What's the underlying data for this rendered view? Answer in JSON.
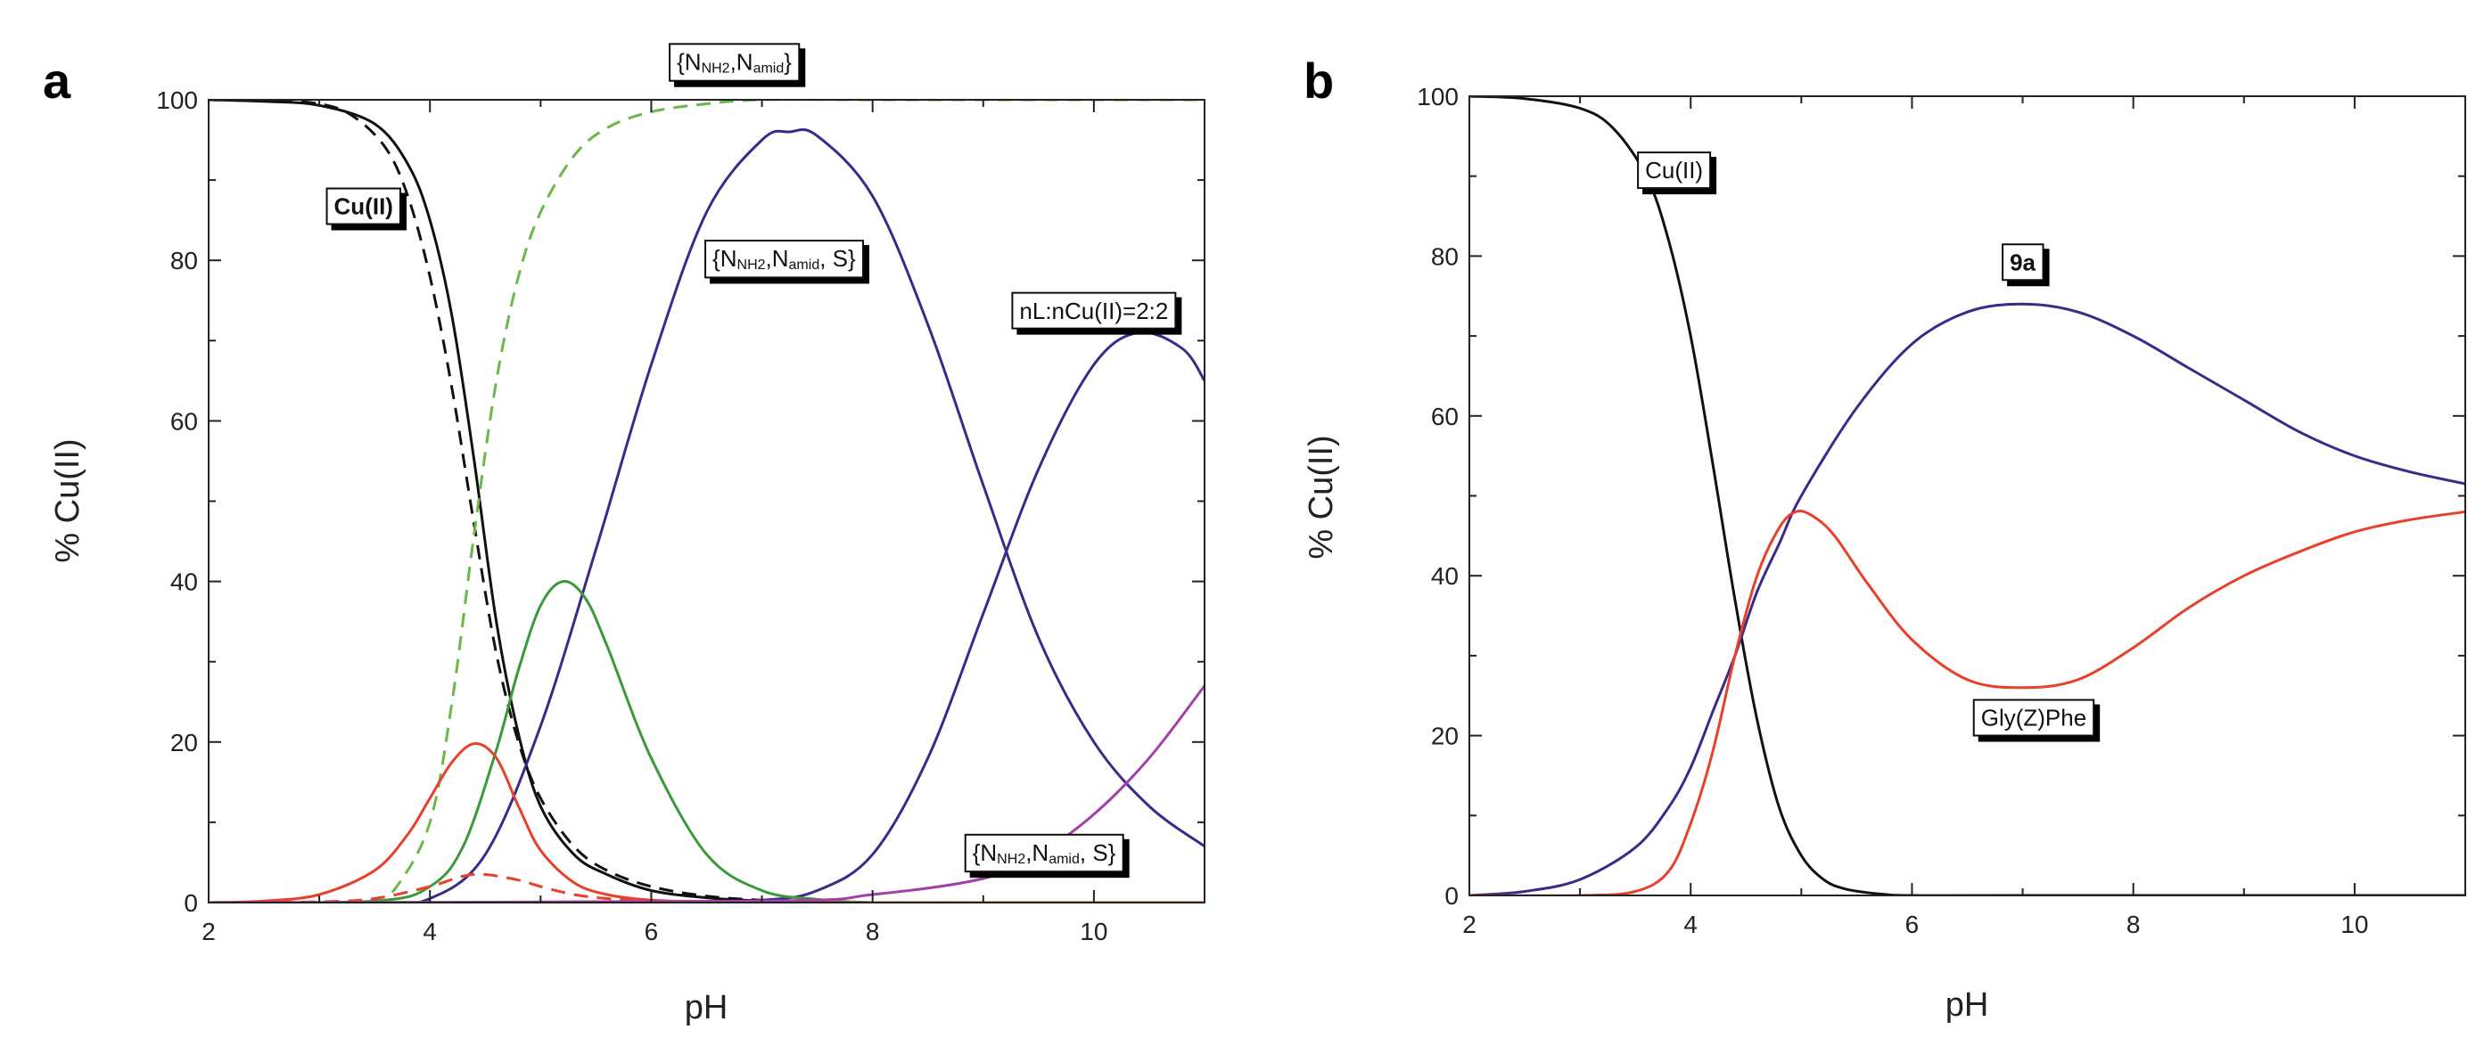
{
  "colors": {
    "black": "#111111",
    "green": "#3a9a3a",
    "green_dashed": "#6ab84a",
    "purple": "#3b2a8a",
    "red": "#e8402a",
    "magenta": "#a040a8"
  },
  "chart_data": [
    {
      "type": "line",
      "panel": "a",
      "xlabel": "pH",
      "ylabel": "% Cu(II)",
      "xlim": [
        2,
        11
      ],
      "ylim": [
        0,
        100
      ],
      "xticks": [
        2,
        4,
        6,
        8,
        10
      ],
      "yticks": [
        0,
        20,
        40,
        60,
        80,
        100
      ],
      "series": [
        {
          "name": "Cu(II)",
          "style": "solid",
          "color": "black",
          "x": [
            2,
            2.5,
            3,
            3.5,
            3.8,
            4,
            4.2,
            4.4,
            4.6,
            4.8,
            5,
            5.3,
            5.6,
            6,
            6.5,
            7,
            7.5,
            8,
            9,
            10,
            11
          ],
          "y": [
            100,
            99.8,
            99.3,
            97,
            92,
            85,
            73,
            55,
            35,
            21,
            12,
            6,
            3.5,
            1.5,
            0.6,
            0.2,
            0.1,
            0,
            0,
            0,
            0
          ]
        },
        {
          "name": "Cu(II) (dashed)",
          "style": "dashed",
          "color": "black",
          "x": [
            2,
            2.5,
            3,
            3.3,
            3.6,
            3.8,
            4,
            4.2,
            4.4,
            4.6,
            4.8,
            5,
            5.3,
            5.6,
            6,
            6.5,
            7,
            7.5,
            8,
            9,
            10,
            11
          ],
          "y": [
            100,
            100,
            99.5,
            98,
            94,
            88,
            78,
            64,
            47,
            31,
            20,
            13,
            7,
            4,
            2,
            0.8,
            0.3,
            0.1,
            0,
            0,
            0,
            0
          ]
        },
        {
          "name": "{NNH2,Namid}",
          "style": "dashed",
          "color": "green_dashed",
          "x": [
            2,
            3,
            3.5,
            3.7,
            4,
            4.2,
            4.4,
            4.6,
            4.8,
            5,
            5.3,
            5.6,
            6,
            6.5,
            7,
            8,
            9,
            10,
            11
          ],
          "y": [
            0,
            0,
            0.5,
            2,
            10,
            25,
            46,
            65,
            78,
            86,
            93,
            96.5,
            98.5,
            99.5,
            100,
            100,
            100,
            100,
            100
          ]
        },
        {
          "name": "{NNH2,Namid, S}",
          "style": "solid",
          "color": "purple",
          "x": [
            2,
            3.5,
            4,
            4.5,
            5,
            5.5,
            6,
            6.5,
            7,
            7.25,
            7.5,
            8,
            8.5,
            9,
            9.5,
            10,
            10.5,
            11
          ],
          "y": [
            0,
            0,
            0.5,
            6,
            22,
            44,
            67,
            86,
            95,
            96,
            95.5,
            88,
            72,
            52,
            33,
            20,
            12,
            7
          ]
        },
        {
          "name": "nL:nCu(II)=2:2",
          "style": "solid",
          "color": "purple",
          "x": [
            2,
            6,
            7,
            7.5,
            8,
            8.5,
            9,
            9.5,
            10,
            10.4,
            10.8,
            11
          ],
          "y": [
            0,
            0,
            0.3,
            1.5,
            6,
            18,
            36,
            54,
            67,
            71,
            69,
            65
          ]
        },
        {
          "name": "green solid",
          "style": "solid",
          "color": "green",
          "x": [
            2,
            3.5,
            4,
            4.3,
            4.6,
            4.8,
            5,
            5.2,
            5.4,
            5.6,
            6,
            6.5,
            7,
            7.5,
            8,
            9,
            11
          ],
          "y": [
            0,
            0.2,
            2,
            7,
            19,
            29,
            37,
            40,
            38,
            32,
            18,
            6,
            1.5,
            0.4,
            0,
            0,
            0
          ]
        },
        {
          "name": "red solid",
          "style": "solid",
          "color": "red",
          "x": [
            2,
            2.5,
            3,
            3.5,
            3.8,
            4,
            4.2,
            4.4,
            4.6,
            4.8,
            5,
            5.3,
            5.6,
            6,
            6.5,
            7,
            8,
            11
          ],
          "y": [
            0,
            0.2,
            1,
            4,
            8.5,
            13,
            17.5,
            19.8,
            18,
            12,
            6.5,
            2.5,
            1,
            0.3,
            0.1,
            0,
            0,
            0
          ]
        },
        {
          "name": "red dashed",
          "style": "dashed",
          "color": "red",
          "x": [
            2,
            3,
            3.5,
            4,
            4.3,
            4.5,
            4.8,
            5,
            5.3,
            5.6,
            6,
            7,
            11
          ],
          "y": [
            0,
            0.1,
            0.5,
            2,
            3.3,
            3.5,
            2.8,
            2,
            1,
            0.5,
            0.2,
            0,
            0
          ]
        },
        {
          "name": "{NNH2,Namid, S} minor",
          "style": "solid",
          "color": "magenta",
          "x": [
            2,
            7,
            8,
            9,
            9.5,
            10,
            10.5,
            11
          ],
          "y": [
            0,
            0.2,
            1,
            3,
            6,
            11,
            18,
            27
          ]
        }
      ],
      "annotations": [
        {
          "id": "cu",
          "parts": [
            {
              "t": "Cu(II)",
              "sub": false
            }
          ],
          "bold": true,
          "x": 3.4,
          "y": 86.5
        },
        {
          "id": "nn",
          "parts": [
            {
              "t": "{N",
              "sub": false
            },
            {
              "t": "NH2",
              "sub": true
            },
            {
              "t": ",N",
              "sub": false
            },
            {
              "t": "amid",
              "sub": true
            },
            {
              "t": "}",
              "sub": false
            }
          ],
          "bold": false,
          "x": 6.75,
          "y": 104.5
        },
        {
          "id": "nns",
          "parts": [
            {
              "t": "{N",
              "sub": false
            },
            {
              "t": "NH2",
              "sub": true
            },
            {
              "t": ",N",
              "sub": false
            },
            {
              "t": "amid",
              "sub": true
            },
            {
              "t": ", S}",
              "sub": false
            }
          ],
          "bold": false,
          "x": 7.2,
          "y": 80
        },
        {
          "id": "ratio",
          "parts": [
            {
              "t": "nL:nCu(II)=2:2",
              "sub": false
            }
          ],
          "bold": false,
          "x": 10.0,
          "y": 73.5
        },
        {
          "id": "nns2",
          "parts": [
            {
              "t": "{N",
              "sub": false
            },
            {
              "t": "NH2",
              "sub": true
            },
            {
              "t": ",N",
              "sub": false
            },
            {
              "t": "amid",
              "sub": true
            },
            {
              "t": ", S}",
              "sub": false
            }
          ],
          "bold": false,
          "x": 9.55,
          "y": 6
        }
      ]
    },
    {
      "type": "line",
      "panel": "b",
      "xlabel": "pH",
      "ylabel": "% Cu(II)",
      "xlim": [
        2,
        11
      ],
      "ylim": [
        0,
        100
      ],
      "xticks": [
        2,
        4,
        6,
        8,
        10
      ],
      "yticks": [
        0,
        20,
        40,
        60,
        80,
        100
      ],
      "series": [
        {
          "name": "Cu(II)",
          "style": "solid",
          "color": "black",
          "x": [
            2,
            2.5,
            3,
            3.3,
            3.6,
            3.8,
            4,
            4.2,
            4.4,
            4.6,
            4.8,
            5,
            5.2,
            5.4,
            5.7,
            6,
            7,
            11
          ],
          "y": [
            100,
            99.7,
            98.5,
            96,
            90,
            82,
            70,
            54,
            37,
            22,
            11,
            5,
            2,
            0.8,
            0.2,
            0,
            0,
            0
          ]
        },
        {
          "name": "9a",
          "style": "solid",
          "color": "purple",
          "x": [
            2,
            2.5,
            3,
            3.5,
            3.8,
            4,
            4.2,
            4.4,
            4.6,
            4.8,
            5,
            5.5,
            6,
            6.5,
            7,
            7.5,
            8,
            8.5,
            9,
            9.5,
            10,
            10.5,
            11
          ],
          "y": [
            0,
            0.5,
            2,
            6,
            11,
            16,
            23,
            30,
            38,
            44,
            50,
            61,
            69,
            73,
            74,
            73,
            70,
            66,
            62,
            58,
            55,
            53,
            51.5
          ]
        },
        {
          "name": "Gly(Z)Phe",
          "style": "solid",
          "color": "red",
          "x": [
            2,
            3,
            3.5,
            3.8,
            4,
            4.2,
            4.4,
            4.6,
            4.8,
            4.95,
            5.1,
            5.3,
            5.6,
            6,
            6.5,
            7,
            7.5,
            8,
            8.5,
            9,
            9.5,
            10,
            10.5,
            11
          ],
          "y": [
            0,
            0,
            0.5,
            3,
            9,
            18,
            30,
            40,
            46,
            48,
            47.5,
            45,
            39,
            32,
            27,
            26,
            27,
            31,
            36,
            40,
            43,
            45.5,
            47,
            48
          ]
        }
      ],
      "annotations": [
        {
          "id": "cu",
          "parts": [
            {
              "t": "Cu(II)",
              "sub": false
            }
          ],
          "bold": false,
          "x": 3.85,
          "y": 90.5
        },
        {
          "id": "9a",
          "parts": [
            {
              "t": "9a",
              "sub": false
            }
          ],
          "bold": true,
          "x": 7.0,
          "y": 79
        },
        {
          "id": "gly",
          "parts": [
            {
              "t": "Gly(Z)Phe",
              "sub": false
            }
          ],
          "bold": false,
          "x": 7.1,
          "y": 22
        }
      ]
    }
  ]
}
